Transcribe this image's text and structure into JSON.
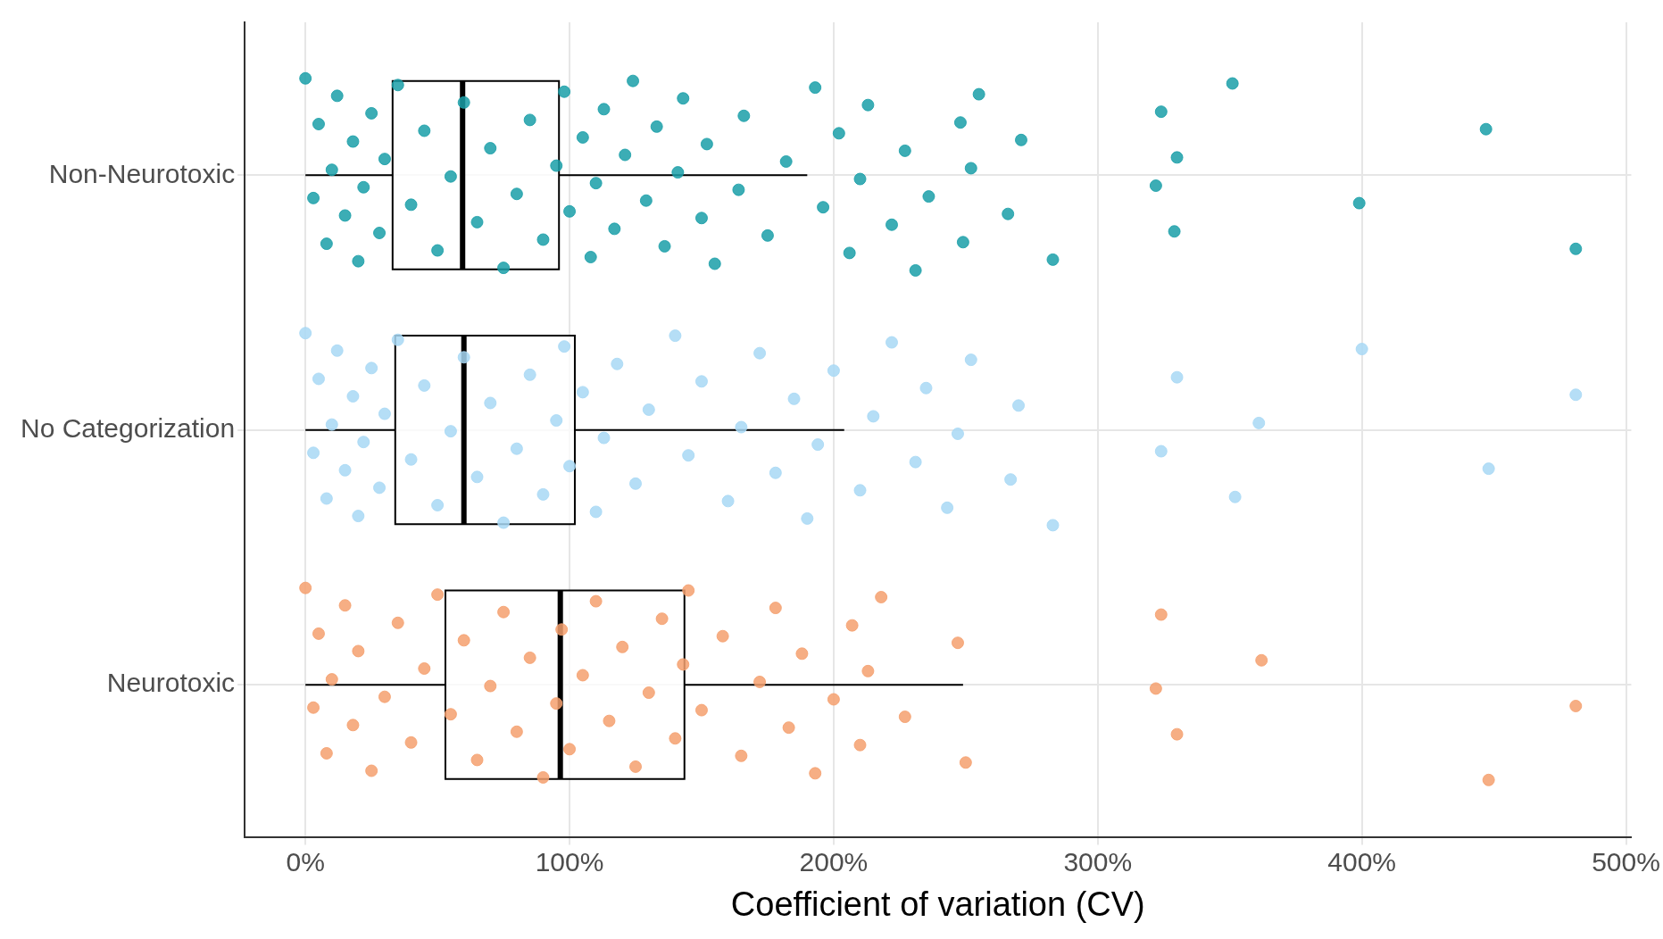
{
  "chart_data": {
    "type": "box",
    "orientation": "horizontal",
    "xlabel": "Coefficient of variation (CV)",
    "categories": [
      "Non-Neurotoxic",
      "No Categorization",
      "Neurotoxic"
    ],
    "boxes": [
      {
        "low": 0,
        "q1": 33,
        "median": 59.5,
        "q3": 96,
        "high": 190
      },
      {
        "low": 0,
        "q1": 34,
        "median": 60,
        "q3": 102,
        "high": 204
      },
      {
        "low": 0,
        "q1": 53,
        "median": 96.5,
        "q3": 143.5,
        "high": 249
      }
    ],
    "xlim": [
      -23,
      502
    ],
    "xticks": [
      {
        "value": 0,
        "label": "0%"
      },
      {
        "value": 100,
        "label": "100%"
      },
      {
        "value": 200,
        "label": "200%"
      },
      {
        "value": 300,
        "label": "300%"
      },
      {
        "value": 400,
        "label": "400%"
      },
      {
        "value": 500,
        "label": "500%"
      }
    ],
    "grid": true,
    "legend": false,
    "marker": "circle",
    "series": [
      {
        "type": "scatter",
        "color": "#1a9fa8",
        "x": [
          "Non-Neurotoxic",
          "Non-Neurotoxic",
          "Non-Neurotoxic",
          "Non-Neurotoxic",
          "Non-Neurotoxic",
          "Non-Neurotoxic",
          "Non-Neurotoxic",
          "Non-Neurotoxic",
          "Non-Neurotoxic",
          "Non-Neurotoxic",
          "Non-Neurotoxic",
          "Non-Neurotoxic",
          "Non-Neurotoxic",
          "Non-Neurotoxic",
          "Non-Neurotoxic",
          "Non-Neurotoxic",
          "Non-Neurotoxic",
          "Non-Neurotoxic",
          "Non-Neurotoxic",
          "Non-Neurotoxic",
          "Non-Neurotoxic",
          "Non-Neurotoxic",
          "Non-Neurotoxic",
          "Non-Neurotoxic",
          "Non-Neurotoxic",
          "Non-Neurotoxic",
          "Non-Neurotoxic",
          "Non-Neurotoxic",
          "Non-Neurotoxic",
          "Non-Neurotoxic",
          "Non-Neurotoxic",
          "Non-Neurotoxic",
          "Non-Neurotoxic",
          "Non-Neurotoxic",
          "Non-Neurotoxic",
          "Non-Neurotoxic",
          "Non-Neurotoxic",
          "Non-Neurotoxic",
          "Non-Neurotoxic",
          "Non-Neurotoxic",
          "Non-Neurotoxic",
          "Non-Neurotoxic",
          "Non-Neurotoxic",
          "Non-Neurotoxic",
          "Non-Neurotoxic",
          "Non-Neurotoxic",
          "Non-Neurotoxic",
          "Non-Neurotoxic",
          "Non-Neurotoxic",
          "Non-Neurotoxic",
          "Non-Neurotoxic",
          "Non-Neurotoxic",
          "Non-Neurotoxic",
          "Non-Neurotoxic",
          "Non-Neurotoxic",
          "Non-Neurotoxic",
          "Non-Neurotoxic",
          "Non-Neurotoxic",
          "Non-Neurotoxic",
          "Non-Neurotoxic",
          "Non-Neurotoxic",
          "Non-Neurotoxic",
          "Non-Neurotoxic",
          "Non-Neurotoxic",
          "Non-Neurotoxic",
          "Non-Neurotoxic",
          "Non-Neurotoxic",
          "Non-Neurotoxic",
          "Non-Neurotoxic",
          "Non-Neurotoxic",
          "Non-Neurotoxic",
          "Non-Neurotoxic"
        ],
        "values": [
          0,
          3,
          5,
          8,
          10,
          12,
          15,
          18,
          20,
          22,
          25,
          28,
          30,
          35,
          40,
          45,
          50,
          55,
          60,
          65,
          70,
          75,
          80,
          85,
          90,
          95,
          98,
          100,
          105,
          108,
          110,
          113,
          117,
          121,
          124,
          129,
          133,
          136,
          141,
          143,
          150,
          152,
          155,
          164,
          166,
          175,
          182,
          193,
          196,
          202,
          206,
          210,
          213,
          222,
          227,
          231,
          236,
          248,
          249,
          252,
          255,
          266,
          271,
          283,
          322,
          324,
          329,
          330,
          351,
          399,
          447,
          481
        ]
      },
      {
        "type": "scatter",
        "color": "#a8d8f5",
        "x": [
          "No Categorization",
          "No Categorization",
          "No Categorization",
          "No Categorization",
          "No Categorization",
          "No Categorization",
          "No Categorization",
          "No Categorization",
          "No Categorization",
          "No Categorization",
          "No Categorization",
          "No Categorization",
          "No Categorization",
          "No Categorization",
          "No Categorization",
          "No Categorization",
          "No Categorization",
          "No Categorization",
          "No Categorization",
          "No Categorization",
          "No Categorization",
          "No Categorization",
          "No Categorization",
          "No Categorization",
          "No Categorization",
          "No Categorization",
          "No Categorization",
          "No Categorization",
          "No Categorization",
          "No Categorization",
          "No Categorization",
          "No Categorization",
          "No Categorization",
          "No Categorization",
          "No Categorization",
          "No Categorization",
          "No Categorization",
          "No Categorization",
          "No Categorization",
          "No Categorization",
          "No Categorization",
          "No Categorization",
          "No Categorization",
          "No Categorization",
          "No Categorization",
          "No Categorization",
          "No Categorization",
          "No Categorization",
          "No Categorization",
          "No Categorization",
          "No Categorization",
          "No Categorization",
          "No Categorization",
          "No Categorization",
          "No Categorization",
          "No Categorization",
          "No Categorization",
          "No Categorization",
          "No Categorization",
          "No Categorization",
          "No Categorization",
          "No Categorization",
          "No Categorization"
        ],
        "values": [
          0,
          3,
          5,
          8,
          10,
          12,
          15,
          18,
          20,
          22,
          25,
          28,
          30,
          35,
          40,
          45,
          50,
          55,
          60,
          65,
          70,
          75,
          80,
          85,
          90,
          95,
          98,
          100,
          105,
          110,
          113,
          118,
          125,
          130,
          140,
          145,
          150,
          160,
          165,
          172,
          178,
          185,
          190,
          194,
          200,
          210,
          215,
          222,
          231,
          235,
          243,
          247,
          252,
          267,
          270,
          283,
          324,
          330,
          352,
          361,
          400,
          448,
          481
        ]
      },
      {
        "type": "scatter",
        "color": "#f4a06e",
        "x": [
          "Neurotoxic",
          "Neurotoxic",
          "Neurotoxic",
          "Neurotoxic",
          "Neurotoxic",
          "Neurotoxic",
          "Neurotoxic",
          "Neurotoxic",
          "Neurotoxic",
          "Neurotoxic",
          "Neurotoxic",
          "Neurotoxic",
          "Neurotoxic",
          "Neurotoxic",
          "Neurotoxic",
          "Neurotoxic",
          "Neurotoxic",
          "Neurotoxic",
          "Neurotoxic",
          "Neurotoxic",
          "Neurotoxic",
          "Neurotoxic",
          "Neurotoxic",
          "Neurotoxic",
          "Neurotoxic",
          "Neurotoxic",
          "Neurotoxic",
          "Neurotoxic",
          "Neurotoxic",
          "Neurotoxic",
          "Neurotoxic",
          "Neurotoxic",
          "Neurotoxic",
          "Neurotoxic",
          "Neurotoxic",
          "Neurotoxic",
          "Neurotoxic",
          "Neurotoxic",
          "Neurotoxic",
          "Neurotoxic",
          "Neurotoxic",
          "Neurotoxic",
          "Neurotoxic",
          "Neurotoxic",
          "Neurotoxic",
          "Neurotoxic",
          "Neurotoxic",
          "Neurotoxic",
          "Neurotoxic",
          "Neurotoxic",
          "Neurotoxic",
          "Neurotoxic",
          "Neurotoxic",
          "Neurotoxic",
          "Neurotoxic",
          "Neurotoxic",
          "Neurotoxic"
        ],
        "values": [
          0,
          3,
          5,
          8,
          10,
          15,
          18,
          20,
          25,
          30,
          35,
          40,
          45,
          50,
          55,
          60,
          65,
          70,
          75,
          80,
          85,
          90,
          95,
          97,
          100,
          105,
          110,
          115,
          120,
          125,
          130,
          135,
          140,
          143,
          145,
          150,
          158,
          165,
          172,
          178,
          183,
          188,
          193,
          200,
          207,
          210,
          213,
          218,
          227,
          247,
          250,
          322,
          324,
          330,
          362,
          448,
          481
        ]
      }
    ]
  }
}
